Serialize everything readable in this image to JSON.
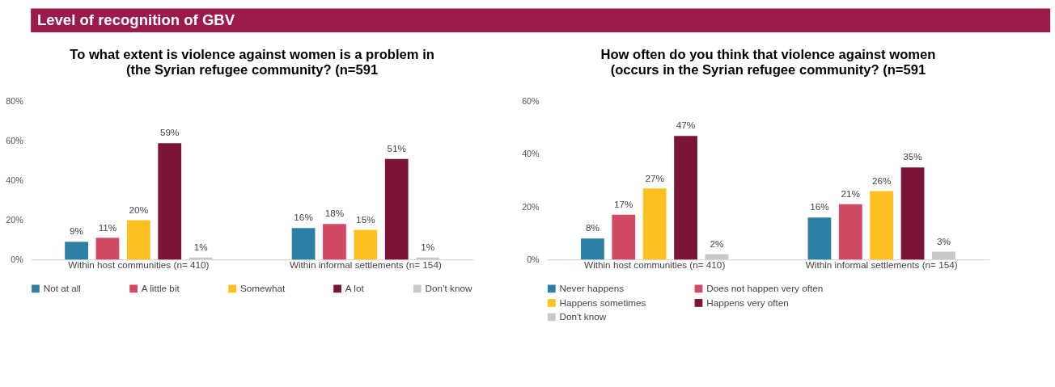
{
  "chart_data": [
    {
      "type": "other",
      "title": "Level of recognition of GBV"
    },
    {
      "type": "bar",
      "title": "To what extent is violence against women is a problem in\n(the Syrian refugee community? (n=591",
      "categories": [
        "Within host communities (n= 410)",
        "Within informal settlements (n= 154)"
      ],
      "ylim": [
        0,
        80
      ],
      "yticks": [
        {
          "value": 0,
          "label": "0%"
        },
        {
          "value": 20,
          "label": "20%"
        },
        {
          "value": 40,
          "label": "40%"
        },
        {
          "value": 60,
          "label": "60%"
        },
        {
          "value": 80,
          "label": "80%"
        }
      ],
      "grid": false,
      "legend": "bottom",
      "series": [
        {
          "name": "Not at all",
          "color": "#2e7fa6",
          "values": [
            9,
            16
          ],
          "value_labels": [
            "9%",
            "16%"
          ]
        },
        {
          "name": "A little bit",
          "color": "#d04a63",
          "values": [
            11,
            18
          ],
          "value_labels": [
            "11%",
            "18%"
          ]
        },
        {
          "name": "Somewhat",
          "color": "#fcc020",
          "values": [
            20,
            15
          ],
          "value_labels": [
            "20%",
            "15%"
          ]
        },
        {
          "name": "A lot",
          "color": "#7b1535",
          "values": [
            59,
            51
          ],
          "value_labels": [
            "59%",
            "51%"
          ]
        },
        {
          "name": "Don’t know",
          "color": "#c8c8c8",
          "values": [
            1,
            1
          ],
          "value_labels": [
            "1%",
            "1%"
          ]
        }
      ]
    },
    {
      "type": "bar",
      "title": "How often do you think that violence against women\n(occurs in the Syrian refugee community? (n=591",
      "categories": [
        "Within host communities (n= 410)",
        "Within informal settlements (n= 154)"
      ],
      "ylim": [
        0,
        60
      ],
      "yticks": [
        {
          "value": 0,
          "label": "0%"
        },
        {
          "value": 20,
          "label": "20%"
        },
        {
          "value": 40,
          "label": "40%"
        },
        {
          "value": 60,
          "label": "60%"
        }
      ],
      "grid": false,
      "legend": "bottom",
      "series": [
        {
          "name": "Never happens",
          "color": "#2e7fa6",
          "values": [
            8,
            16
          ],
          "value_labels": [
            "8%",
            "16%"
          ]
        },
        {
          "name": "Does not happen very often",
          "color": "#d04a63",
          "values": [
            17,
            21
          ],
          "value_labels": [
            "17%",
            "21%"
          ]
        },
        {
          "name": "Happens sometimes",
          "color": "#fcc020",
          "values": [
            27,
            26
          ],
          "value_labels": [
            "27%",
            "26%"
          ]
        },
        {
          "name": "Happens very often",
          "color": "#7b1535",
          "values": [
            47,
            35
          ],
          "value_labels": [
            "47%",
            "35%"
          ]
        },
        {
          "name": "Don't know",
          "color": "#c8c8c8",
          "values": [
            2,
            3
          ],
          "value_labels": [
            "2%",
            "3%"
          ]
        }
      ]
    }
  ]
}
